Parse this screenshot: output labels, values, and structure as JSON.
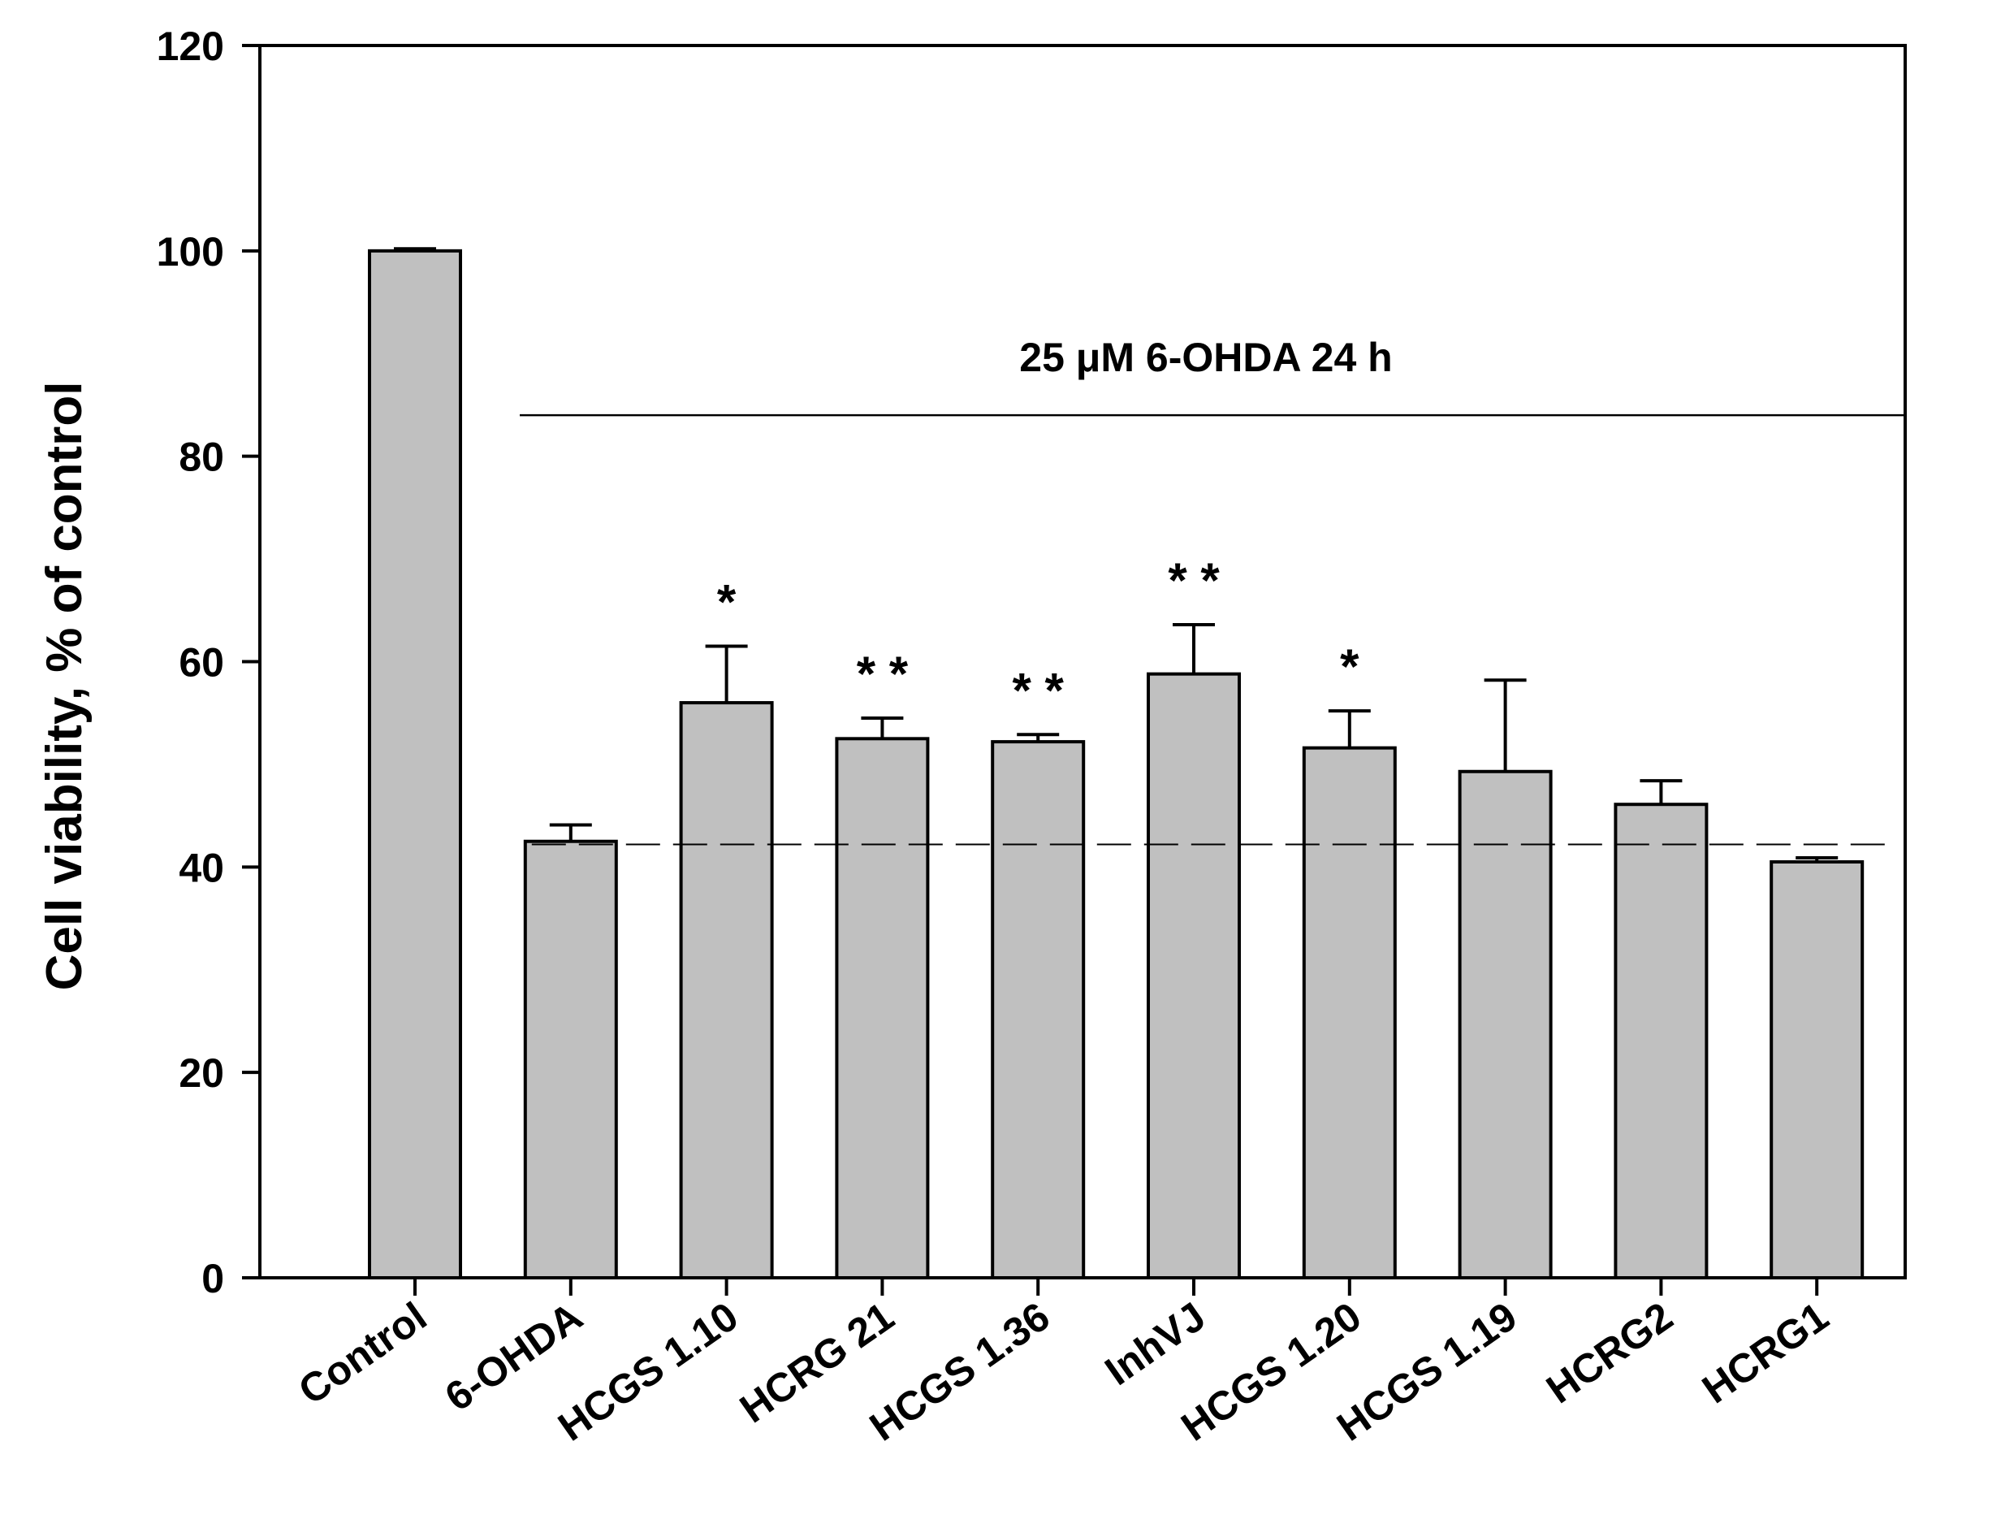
{
  "chart_data": {
    "type": "bar",
    "title": "",
    "xlabel": "",
    "ylabel": "Cell viability, % of control",
    "ylim": [
      0,
      120
    ],
    "yticks": [
      0,
      20,
      40,
      60,
      80,
      100,
      120
    ],
    "grid": false,
    "categories": [
      "Control",
      "6-OHDA",
      "HCGS 1.10",
      "HCRG 21",
      "HCGS 1.36",
      "InhVJ",
      "HCGS 1.20",
      "HCGS 1.19",
      "HCRG2",
      "HCRG1"
    ],
    "series": [
      {
        "values": [
          100,
          42.5,
          56,
          52.5,
          52.2,
          58.8,
          51.6,
          49.3,
          46.1,
          40.5
        ],
        "errors": [
          0.2,
          1.6,
          5.5,
          2.0,
          0.7,
          4.8,
          3.6,
          8.9,
          2.3,
          0.4
        ],
        "color": "#c0c0c0"
      }
    ],
    "significance": [
      "",
      "",
      "*",
      "* *",
      "* *",
      "* *",
      "*",
      "",
      "",
      ""
    ],
    "annotation": {
      "text": "25 μM 6-OHDA 24 h",
      "bracket_y": 84,
      "span_categories": [
        "6-OHDA",
        "HCRG1"
      ]
    },
    "reference_line": {
      "y": 42.2,
      "style": "dashed"
    },
    "bar_color": "#c0c0c0",
    "edge_color": "#000000"
  }
}
